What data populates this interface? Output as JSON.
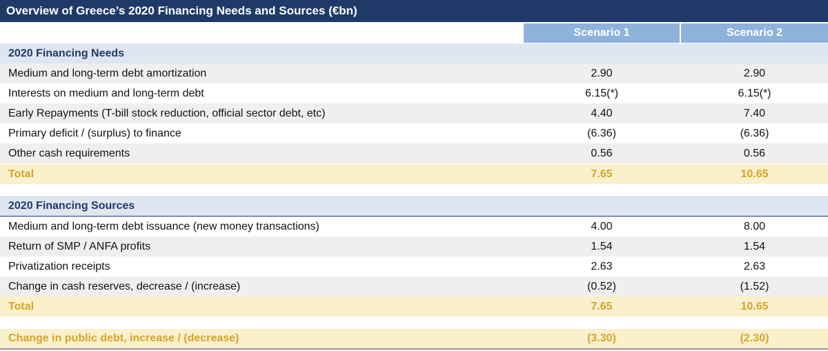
{
  "title": "Overview of Greece’s 2020 Financing Needs and Sources (€bn)",
  "headers": {
    "scenario1": "Scenario 1",
    "scenario2": "Scenario 2"
  },
  "needs": {
    "heading": "2020 Financing Needs",
    "rows": [
      {
        "label": "Medium and long-term debt amortization",
        "s1": "2.90",
        "s2": "2.90"
      },
      {
        "label": "Interests on medium and long-term debt",
        "s1": "6.15(*)",
        "s2": "6.15(*)"
      },
      {
        "label": "Early Repayments (T-bill stock reduction, official sector debt, etc)",
        "s1": "4.40",
        "s2": "7.40"
      },
      {
        "label": "Primary deficit / (surplus) to finance",
        "s1": "(6.36)",
        "s2": "(6.36)"
      },
      {
        "label": "Other cash requirements",
        "s1": "0.56",
        "s2": "0.56"
      }
    ],
    "total": {
      "label": "Total",
      "s1": "7.65",
      "s2": "10.65"
    }
  },
  "sources": {
    "heading": "2020 Financing Sources",
    "rows": [
      {
        "label": "Medium and long-term debt issuance (new money transactions)",
        "s1": "4.00",
        "s2": "8.00"
      },
      {
        "label": "Return of SMP / ANFA profits",
        "s1": "1.54",
        "s2": "1.54"
      },
      {
        "label": "Privatization receipts",
        "s1": "2.63",
        "s2": "2.63"
      },
      {
        "label": "Change in cash reserves, decrease / (increase)",
        "s1": "(0.52)",
        "s2": "(1.52)"
      }
    ],
    "total": {
      "label": "Total",
      "s1": "7.65",
      "s2": "10.65"
    }
  },
  "debt_change": {
    "label": "Change in public debt, increase / (decrease)",
    "s1": "(3.30)",
    "s2": "(2.30)"
  },
  "colors": {
    "title_bg": "#1f3a68",
    "header_bg": "#8fb2da",
    "section_bg": "#dde6f1",
    "total_bg": "#fbf0cc",
    "total_text": "#d6a42a"
  }
}
